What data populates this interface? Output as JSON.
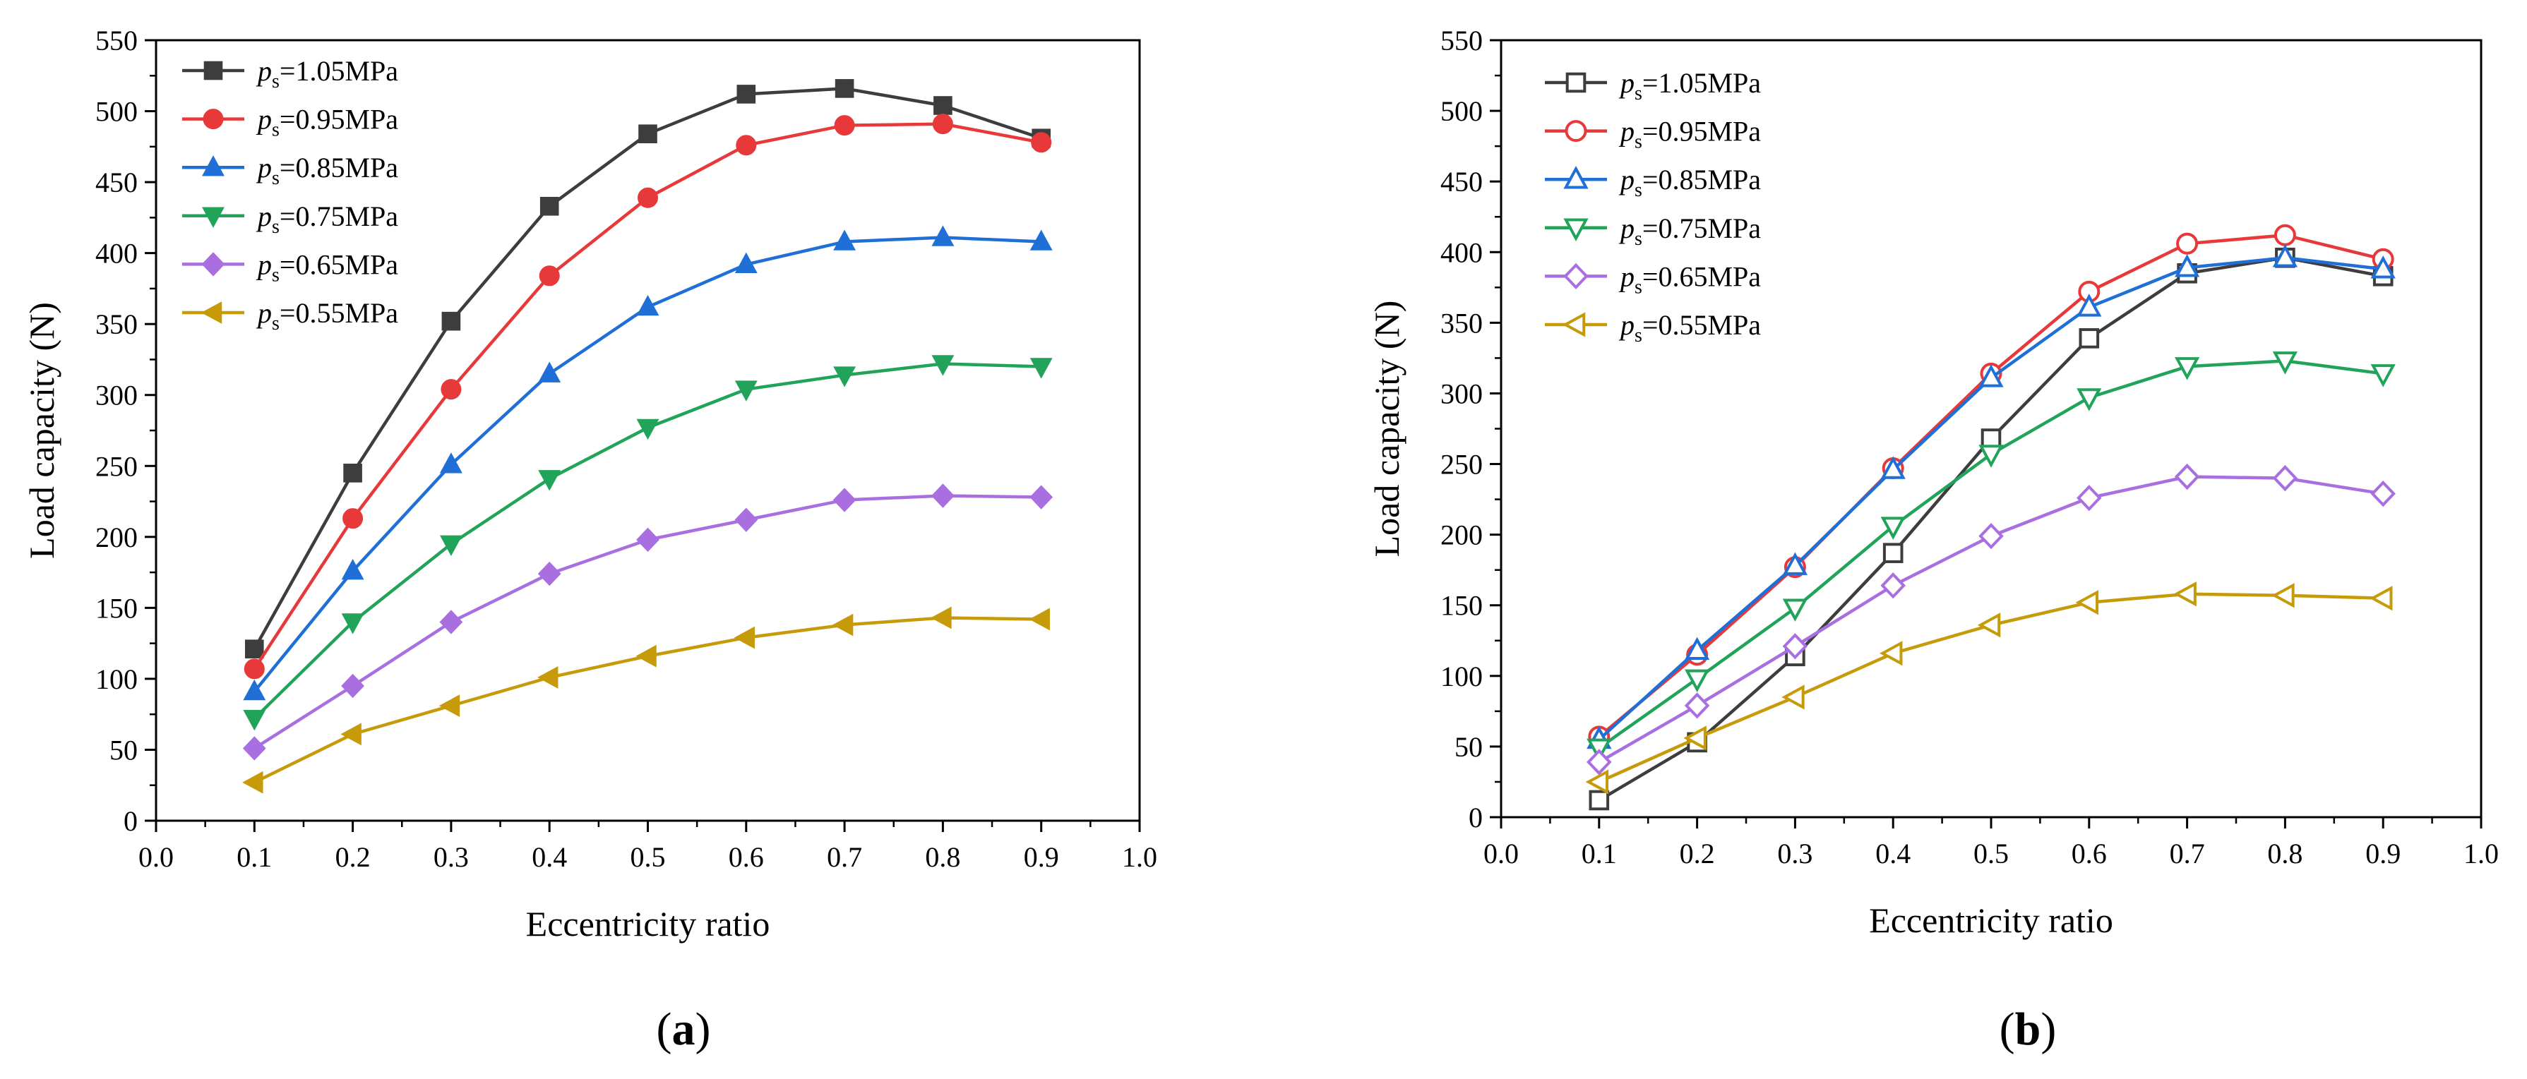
{
  "chart_data": [
    {
      "type": "line",
      "panel_label": "a",
      "xlabel": "Eccentricity ratio",
      "ylabel": "Load capacity (N)",
      "xlim": [
        0.0,
        1.0
      ],
      "ylim": [
        0,
        550
      ],
      "xticks": [
        "0.0",
        "0.1",
        "0.2",
        "0.3",
        "0.4",
        "0.5",
        "0.6",
        "0.7",
        "0.8",
        "0.9",
        "1.0"
      ],
      "yticks": [
        "0",
        "50",
        "100",
        "150",
        "200",
        "250",
        "300",
        "350",
        "400",
        "450",
        "500",
        "550"
      ],
      "marker_fill": "filled",
      "legend_position": "top-left",
      "x": [
        0.1,
        0.2,
        0.3,
        0.4,
        0.5,
        0.6,
        0.7,
        0.8,
        0.9
      ],
      "series": [
        {
          "name_italic": "p",
          "name_sub": "s",
          "name_rest": "=1.05MPa",
          "color": "#3d3d3d",
          "marker": "square",
          "values": [
            121,
            245,
            352,
            433,
            484,
            512,
            516,
            504,
            481
          ]
        },
        {
          "name_italic": "p",
          "name_sub": "s",
          "name_rest": "=0.95MPa",
          "color": "#e8393a",
          "marker": "circle",
          "values": [
            107,
            213,
            304,
            384,
            439,
            476,
            490,
            491,
            478
          ]
        },
        {
          "name_italic": "p",
          "name_sub": "s",
          "name_rest": "=0.85MPa",
          "color": "#1f6fd6",
          "marker": "triangle-up",
          "values": [
            91,
            176,
            251,
            315,
            362,
            392,
            408,
            411,
            408
          ]
        },
        {
          "name_italic": "p",
          "name_sub": "s",
          "name_rest": "=0.75MPa",
          "color": "#21a35a",
          "marker": "triangle-down",
          "values": [
            72,
            140,
            195,
            241,
            277,
            304,
            314,
            322,
            320
          ]
        },
        {
          "name_italic": "p",
          "name_sub": "s",
          "name_rest": "=0.65MPa",
          "color": "#a96fe0",
          "marker": "diamond",
          "values": [
            51,
            95,
            140,
            174,
            198,
            212,
            226,
            229,
            228
          ]
        },
        {
          "name_italic": "p",
          "name_sub": "s",
          "name_rest": "=0.55MPa",
          "color": "#c69a08",
          "marker": "triangle-left",
          "values": [
            27,
            61,
            81,
            101,
            116,
            129,
            138,
            143,
            142
          ]
        }
      ]
    },
    {
      "type": "line",
      "panel_label": "b",
      "xlabel": "Eccentricity ratio",
      "ylabel": "Load capacity (N)",
      "xlim": [
        0.0,
        1.0
      ],
      "ylim": [
        0,
        550
      ],
      "xticks": [
        "0.0",
        "0.1",
        "0.2",
        "0.3",
        "0.4",
        "0.5",
        "0.6",
        "0.7",
        "0.8",
        "0.9",
        "1.0"
      ],
      "yticks": [
        "0",
        "50",
        "100",
        "150",
        "200",
        "250",
        "300",
        "350",
        "400",
        "450",
        "500",
        "550"
      ],
      "marker_fill": "hollow",
      "legend_position": "top-left",
      "x": [
        0.1,
        0.2,
        0.3,
        0.4,
        0.5,
        0.6,
        0.7,
        0.8,
        0.9
      ],
      "series": [
        {
          "name_italic": "p",
          "name_sub": "s",
          "name_rest": "=1.05MPa",
          "color": "#3d3d3d",
          "marker": "square",
          "values": [
            12,
            53,
            114,
            187,
            268,
            339,
            385,
            396,
            383
          ]
        },
        {
          "name_italic": "p",
          "name_sub": "s",
          "name_rest": "=0.95MPa",
          "color": "#e8393a",
          "marker": "circle",
          "values": [
            57,
            115,
            177,
            247,
            314,
            372,
            406,
            412,
            395
          ]
        },
        {
          "name_italic": "p",
          "name_sub": "s",
          "name_rest": "=0.85MPa",
          "color": "#1f6fd6",
          "marker": "triangle-up",
          "values": [
            55,
            118,
            178,
            246,
            311,
            361,
            389,
            396,
            388
          ]
        },
        {
          "name_italic": "p",
          "name_sub": "s",
          "name_rest": "=0.75MPa",
          "color": "#21a35a",
          "marker": "triangle-down",
          "values": [
            49,
            98,
            148,
            206,
            257,
            297,
            319,
            323,
            314
          ]
        },
        {
          "name_italic": "p",
          "name_sub": "s",
          "name_rest": "=0.65MPa",
          "color": "#a96fe0",
          "marker": "diamond",
          "values": [
            39,
            79,
            121,
            164,
            199,
            226,
            241,
            240,
            229
          ]
        },
        {
          "name_italic": "p",
          "name_sub": "s",
          "name_rest": "=0.55MPa",
          "color": "#c69a08",
          "marker": "triangle-left",
          "values": [
            25,
            56,
            85,
            116,
            136,
            152,
            158,
            157,
            155
          ]
        }
      ]
    }
  ]
}
